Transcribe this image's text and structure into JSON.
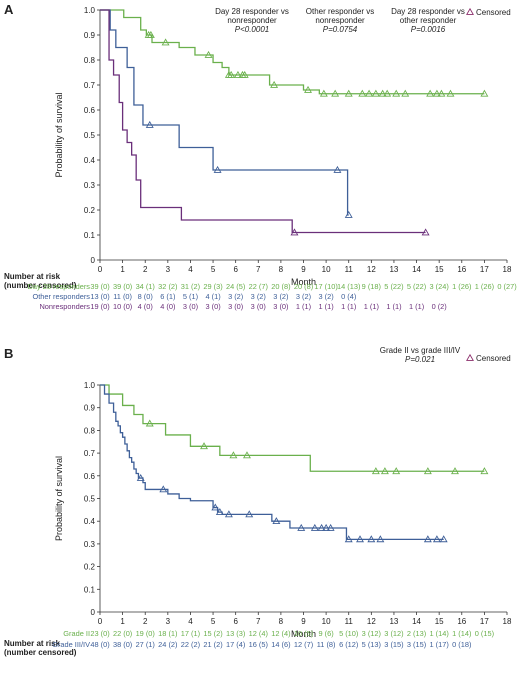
{
  "chart_data": [
    {
      "panel": "A",
      "type": "line",
      "subtype": "kaplan-meier step",
      "xlabel": "Month",
      "ylabel": "Probability of survival",
      "xlim": [
        0,
        18
      ],
      "ylim": [
        0,
        1.0
      ],
      "xticks": [
        "0",
        "1",
        "2",
        "3",
        "4",
        "5",
        "6",
        "7",
        "8",
        "9",
        "10",
        "11",
        "12",
        "13",
        "14",
        "15",
        "16",
        "17",
        "18"
      ],
      "yticks": [
        "0",
        "0.1",
        "0.2",
        "0.3",
        "0.4",
        "0.5",
        "0.6",
        "0.7",
        "0.8",
        "0.9",
        "1.0"
      ],
      "legend": {
        "censored_label": "Censored",
        "placement": "top-right"
      },
      "annotations": [
        {
          "line1": "Day 28 responder vs",
          "line2": "nonresponder",
          "line3": "P<0.0001"
        },
        {
          "line1": "Other responder vs",
          "line2": "nonresponder",
          "line3": "P=0.0754"
        },
        {
          "line1": "Day 28 responder vs",
          "line2": "other responder",
          "line3": "P=0.0016"
        }
      ],
      "series": [
        {
          "name": "Day 28 responders",
          "color": "#6ab04c",
          "steps": [
            [
              0,
              1.0
            ],
            [
              1.05,
              0.97
            ],
            [
              1.8,
              0.92
            ],
            [
              2.05,
              0.9
            ],
            [
              2.3,
              0.87
            ],
            [
              3.5,
              0.85
            ],
            [
              4.2,
              0.82
            ],
            [
              5.0,
              0.79
            ],
            [
              5.4,
              0.77
            ],
            [
              5.7,
              0.74
            ],
            [
              7.5,
              0.7
            ],
            [
              9.0,
              0.68
            ],
            [
              9.7,
              0.665
            ],
            [
              17.0,
              0.665
            ]
          ],
          "censored": [
            2.15,
            2.25,
            2.9,
            4.8,
            5.7,
            5.8,
            6.1,
            6.3,
            6.4,
            7.7,
            9.2,
            9.9,
            10.4,
            11.0,
            11.6,
            11.9,
            12.2,
            12.5,
            12.7,
            13.1,
            13.5,
            14.6,
            14.9,
            15.1,
            15.5,
            17.0
          ]
        },
        {
          "name": "Other responders",
          "color": "#3e5f98",
          "steps": [
            [
              0,
              1.0
            ],
            [
              0.45,
              0.92
            ],
            [
              0.7,
              0.85
            ],
            [
              1.2,
              0.77
            ],
            [
              1.5,
              0.62
            ],
            [
              1.9,
              0.54
            ],
            [
              2.5,
              0.54
            ],
            [
              3.5,
              0.45
            ],
            [
              5.0,
              0.36
            ],
            [
              10.8,
              0.36
            ],
            [
              10.95,
              0.18
            ],
            [
              11.0,
              0.18
            ]
          ],
          "censored": [
            2.2,
            5.2,
            10.5,
            11.0
          ]
        },
        {
          "name": "Nonresponders",
          "color": "#6a2f7a",
          "steps": [
            [
              0,
              1.0
            ],
            [
              0.4,
              0.8
            ],
            [
              0.6,
              0.74
            ],
            [
              0.85,
              0.63
            ],
            [
              1.0,
              0.52
            ],
            [
              1.2,
              0.47
            ],
            [
              1.4,
              0.42
            ],
            [
              1.6,
              0.32
            ],
            [
              1.8,
              0.21
            ],
            [
              3.6,
              0.16
            ],
            [
              8.5,
              0.11
            ],
            [
              14.4,
              0.11
            ]
          ],
          "censored": [
            8.6,
            14.4
          ]
        }
      ],
      "risk_table": {
        "title_line1": "Number at risk",
        "title_line2": "(number censored)",
        "rows": [
          {
            "label": "Day 28 responders",
            "color": "#6ab04c",
            "cells": [
              "39 (0)",
              "39 (0)",
              "34 (1)",
              "32 (2)",
              "31 (2)",
              "29 (3)",
              "24 (5)",
              "22 (7)",
              "20 (8)",
              "20 (8)",
              "17 (10)",
              "14 (13)",
              "9 (18)",
              "5 (22)",
              "5 (22)",
              "3 (24)",
              "1 (26)",
              "1 (26)",
              "0 (27)"
            ]
          },
          {
            "label": "Other responders",
            "color": "#3e5f98",
            "cells": [
              "13 (0)",
              "11 (0)",
              "8 (0)",
              "6 (1)",
              "5 (1)",
              "4 (1)",
              "3 (2)",
              "3 (2)",
              "3 (2)",
              "3 (2)",
              "3 (2)",
              "0 (4)",
              "",
              "",
              "",
              "",
              "",
              "",
              ""
            ]
          },
          {
            "label": "Nonresponders",
            "color": "#6a2f7a",
            "cells": [
              "19 (0)",
              "10 (0)",
              "4 (0)",
              "4 (0)",
              "3 (0)",
              "3 (0)",
              "3 (0)",
              "3 (0)",
              "3 (0)",
              "1 (1)",
              "1 (1)",
              "1 (1)",
              "1 (1)",
              "1 (1)",
              "1 (1)",
              "0 (2)",
              "",
              "",
              ""
            ]
          }
        ]
      }
    },
    {
      "panel": "B",
      "type": "line",
      "subtype": "kaplan-meier step",
      "xlabel": "Month",
      "ylabel": "Probability of survival",
      "xlim": [
        0,
        18
      ],
      "ylim": [
        0,
        1.0
      ],
      "xticks": [
        "0",
        "1",
        "2",
        "3",
        "4",
        "5",
        "6",
        "7",
        "8",
        "9",
        "10",
        "11",
        "12",
        "13",
        "14",
        "15",
        "16",
        "17",
        "18"
      ],
      "yticks": [
        "0",
        "0.1",
        "0.2",
        "0.3",
        "0.4",
        "0.5",
        "0.6",
        "0.7",
        "0.8",
        "0.9",
        "1.0"
      ],
      "legend": {
        "censored_label": "Censored",
        "placement": "top-right"
      },
      "annotations": [
        {
          "line1": "Grade II vs grade III/IV",
          "line2": "P=0.021"
        }
      ],
      "series": [
        {
          "name": "Grade II",
          "color": "#6ab04c",
          "steps": [
            [
              0,
              1.0
            ],
            [
              0.4,
              0.96
            ],
            [
              1.0,
              0.91
            ],
            [
              1.5,
              0.87
            ],
            [
              1.9,
              0.83
            ],
            [
              2.9,
              0.78
            ],
            [
              4.0,
              0.73
            ],
            [
              5.3,
              0.69
            ],
            [
              9.0,
              0.69
            ],
            [
              9.3,
              0.62
            ],
            [
              17.0,
              0.62
            ]
          ],
          "censored": [
            2.2,
            4.6,
            5.9,
            6.5,
            12.2,
            12.6,
            13.1,
            14.5,
            15.7,
            17.0
          ]
        },
        {
          "name": "Grade III/IV",
          "color": "#3e5f98",
          "steps": [
            [
              0,
              1.0
            ],
            [
              0.2,
              0.96
            ],
            [
              0.4,
              0.92
            ],
            [
              0.6,
              0.88
            ],
            [
              0.7,
              0.84
            ],
            [
              0.8,
              0.82
            ],
            [
              0.9,
              0.79
            ],
            [
              1.0,
              0.77
            ],
            [
              1.1,
              0.74
            ],
            [
              1.2,
              0.71
            ],
            [
              1.3,
              0.68
            ],
            [
              1.4,
              0.66
            ],
            [
              1.5,
              0.63
            ],
            [
              1.6,
              0.61
            ],
            [
              1.7,
              0.59
            ],
            [
              1.9,
              0.57
            ],
            [
              2.0,
              0.54
            ],
            [
              3.0,
              0.52
            ],
            [
              3.5,
              0.5
            ],
            [
              4.0,
              0.49
            ],
            [
              5.0,
              0.46
            ],
            [
              5.2,
              0.44
            ],
            [
              5.4,
              0.43
            ],
            [
              7.6,
              0.4
            ],
            [
              8.4,
              0.37
            ],
            [
              10.8,
              0.37
            ],
            [
              10.9,
              0.32
            ],
            [
              15.2,
              0.32
            ]
          ],
          "censored": [
            1.8,
            2.8,
            5.1,
            5.3,
            5.7,
            6.6,
            7.8,
            8.9,
            9.5,
            9.8,
            10.0,
            10.2,
            11.0,
            11.5,
            12.0,
            12.4,
            14.5,
            14.9,
            15.2
          ]
        }
      ],
      "risk_table": {
        "title_line1": "Number at risk",
        "title_line2": "(number censored)",
        "rows": [
          {
            "label": "Grade II",
            "color": "#6ab04c",
            "cells": [
              "23 (0)",
              "22 (0)",
              "19 (0)",
              "18 (1)",
              "17 (1)",
              "15 (2)",
              "13 (3)",
              "12 (4)",
              "12 (4)",
              "10 (5)",
              "9 (6)",
              "5 (10)",
              "3 (12)",
              "3 (12)",
              "2 (13)",
              "1 (14)",
              "1 (14)",
              "0 (15)",
              ""
            ]
          },
          {
            "label": "Grade III/IV",
            "color": "#3e5f98",
            "cells": [
              "48 (0)",
              "38 (0)",
              "27 (1)",
              "24 (2)",
              "22 (2)",
              "21 (2)",
              "17 (4)",
              "16 (5)",
              "14 (6)",
              "12 (7)",
              "11 (8)",
              "6 (12)",
              "5 (13)",
              "3 (15)",
              "3 (15)",
              "1 (17)",
              "0 (18)",
              "",
              ""
            ]
          }
        ]
      }
    }
  ],
  "colors": {
    "censor_marker": "#8a2c6a",
    "axis": "#333333"
  },
  "labels": {
    "panel_a": "A",
    "panel_b": "B"
  }
}
